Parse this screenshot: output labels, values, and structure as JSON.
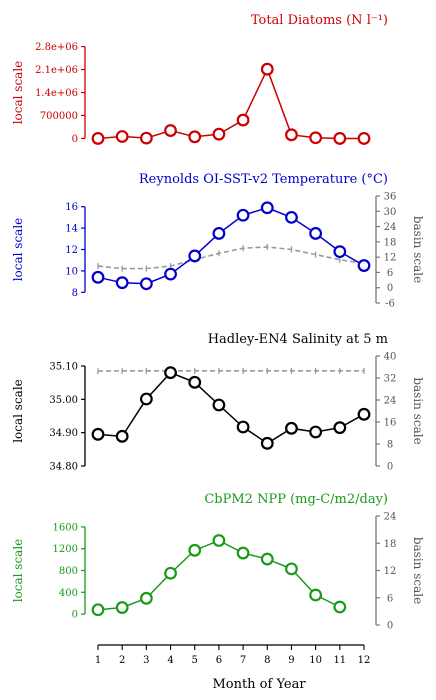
{
  "xaxis": {
    "label": "Month of Year",
    "ticks": [
      1,
      2,
      3,
      4,
      5,
      6,
      7,
      8,
      9,
      10,
      11,
      12
    ]
  },
  "chart_data": [
    {
      "type": "line",
      "title": "Total Diatoms (N l⁻¹)",
      "ylabel": "local scale",
      "color": "#cc0000",
      "ylim": [
        -200000,
        3000000
      ],
      "yticks": [
        0,
        700000,
        1400000,
        2100000,
        2800000
      ],
      "ytick_labels": [
        "0",
        "700000",
        "1.4e+06",
        "2.1e+06",
        "2.8e+06"
      ],
      "x": [
        1,
        2,
        3,
        4,
        5,
        6,
        7,
        8,
        9,
        10,
        11,
        12
      ],
      "series": [
        {
          "values": [
            0,
            60000,
            10000,
            240000,
            50000,
            130000,
            560000,
            2110000,
            110000,
            20000,
            0,
            0
          ]
        }
      ]
    },
    {
      "type": "line",
      "title": "Reynolds OI-SST-v2 Temperature (°C)",
      "ylabel": "local scale",
      "ylabel_right": "basin scale",
      "color": "#0000cc",
      "ylim": [
        7,
        17
      ],
      "yticks": [
        8,
        10,
        12,
        14,
        16
      ],
      "ytick_labels": [
        "8",
        "10",
        "12",
        "14",
        "16"
      ],
      "ylim_right": [
        -6,
        36
      ],
      "yticks_right": [
        -6,
        0,
        6,
        12,
        18,
        24,
        30,
        36
      ],
      "ytick_labels_right": [
        "-6",
        "0",
        "6",
        "12",
        "18",
        "24",
        "30",
        "36"
      ],
      "x": [
        1,
        2,
        3,
        4,
        5,
        6,
        7,
        8,
        9,
        10,
        11,
        12
      ],
      "series": [
        {
          "axis": "left",
          "values": [
            9.4,
            8.9,
            8.8,
            9.7,
            11.4,
            13.5,
            15.2,
            15.9,
            15.0,
            13.5,
            11.8,
            10.5
          ]
        },
        {
          "axis": "right",
          "style": "dashed",
          "color": "#999999",
          "values": [
            8.5,
            7.5,
            7.5,
            8.5,
            11.0,
            13.5,
            15.5,
            16.0,
            15.0,
            13.0,
            11.0,
            9.5
          ]
        }
      ]
    },
    {
      "type": "line",
      "title": "Hadley-EN4 Salinity at 5 m",
      "ylabel": "local scale",
      "ylabel_right": "basin scale",
      "color": "#000000",
      "ylim": [
        34.8,
        35.13
      ],
      "yticks": [
        34.8,
        34.9,
        35.0,
        35.1
      ],
      "ytick_labels": [
        "34.80",
        "34.90",
        "35.00",
        "35.10"
      ],
      "ylim_right": [
        0,
        40
      ],
      "yticks_right": [
        0,
        8,
        16,
        24,
        32,
        40
      ],
      "ytick_labels_right": [
        "0",
        "8",
        "16",
        "24",
        "32",
        "40"
      ],
      "x": [
        1,
        2,
        3,
        4,
        5,
        6,
        7,
        8,
        9,
        10,
        11,
        12
      ],
      "series": [
        {
          "axis": "left",
          "values": [
            34.895,
            34.889,
            35.001,
            35.08,
            35.051,
            34.983,
            34.917,
            34.868,
            34.913,
            34.902,
            34.915,
            34.955
          ]
        },
        {
          "axis": "right",
          "style": "dashed",
          "color": "#999999",
          "values": [
            34.5,
            34.6,
            34.6,
            34.6,
            34.6,
            34.6,
            34.6,
            34.6,
            34.6,
            34.6,
            34.6,
            34.6
          ]
        }
      ]
    },
    {
      "type": "line",
      "title": "CbPM2 NPP (mg-C/m2/day)",
      "ylabel": "local scale",
      "ylabel_right": "basin scale",
      "color": "#1a9a1a",
      "ylim": [
        -200,
        1800
      ],
      "yticks": [
        0,
        400,
        800,
        1200,
        1600
      ],
      "ytick_labels": [
        "0",
        "400",
        "800",
        "1200",
        "1600"
      ],
      "ylim_right": [
        0,
        24
      ],
      "yticks_right": [
        0,
        6,
        12,
        18,
        24
      ],
      "ytick_labels_right": [
        "0",
        "6",
        "12",
        "18",
        "24"
      ],
      "x": [
        1,
        2,
        3,
        4,
        5,
        6,
        7,
        8,
        9,
        10,
        11
      ],
      "series": [
        {
          "axis": "left",
          "values": [
            80,
            120,
            290,
            750,
            1170,
            1350,
            1120,
            1010,
            830,
            350,
            130
          ]
        }
      ]
    }
  ]
}
